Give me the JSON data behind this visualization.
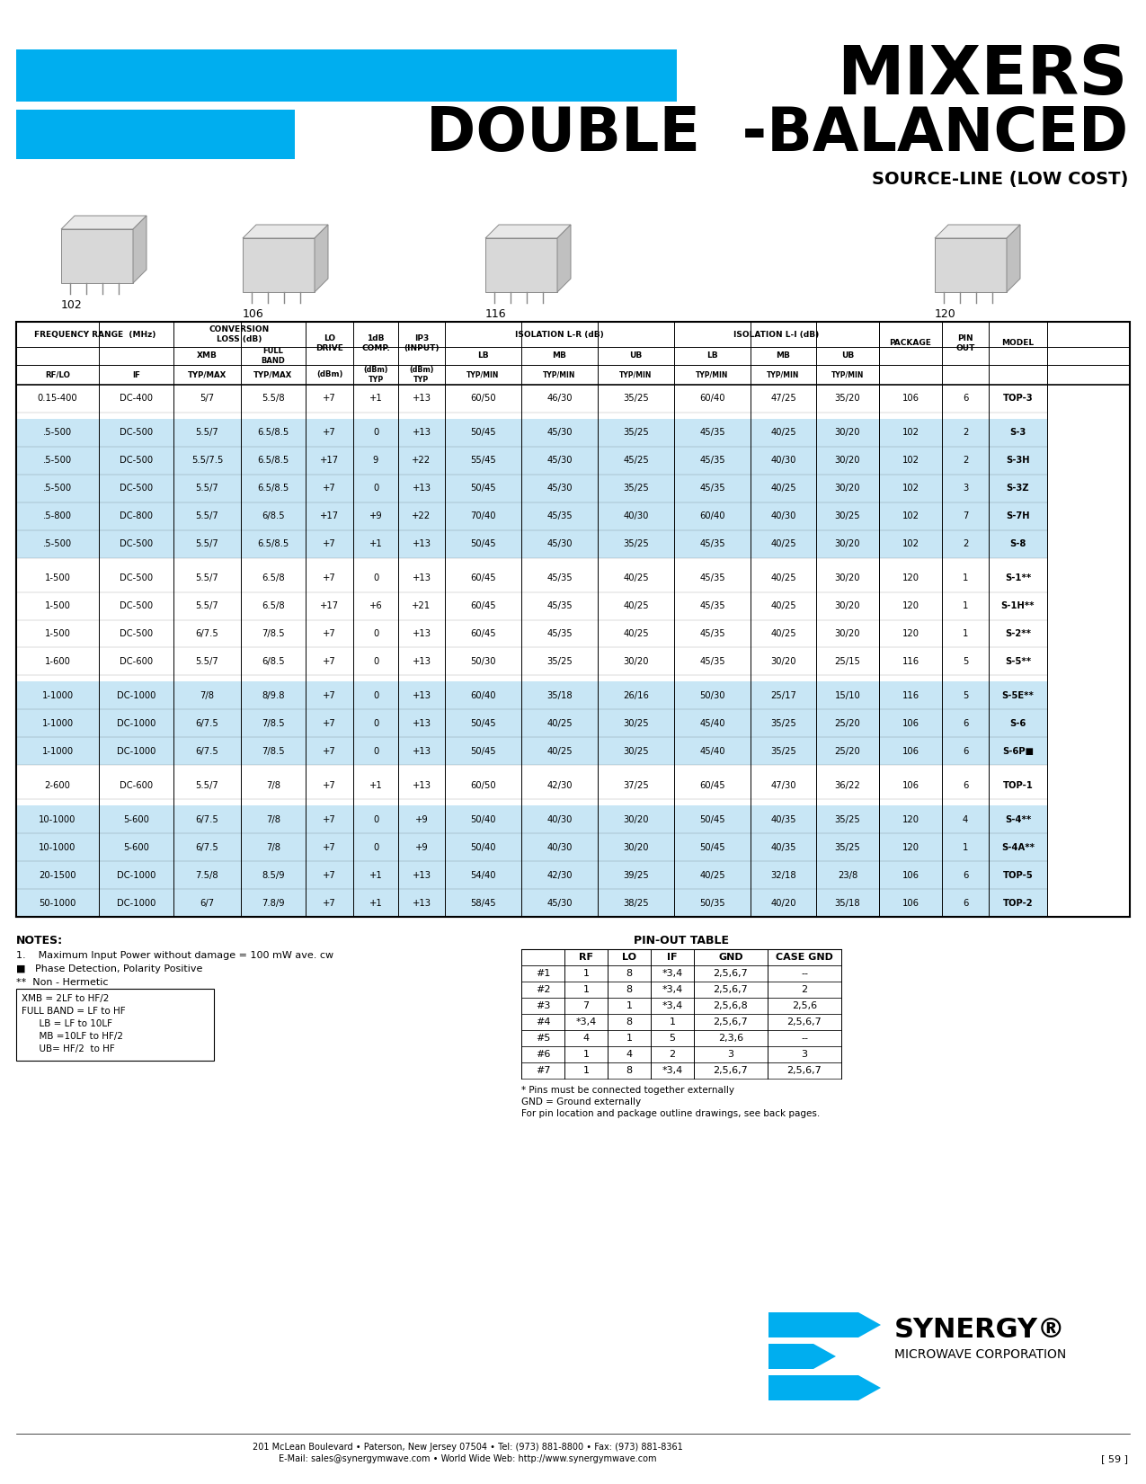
{
  "title1": "MIXERS",
  "title2": "DOUBLE  -BALANCED",
  "subtitle": "SOURCE-LINE (LOW COST)",
  "blue_color": "#00AEEF",
  "light_blue_row": "#C8E6F5",
  "rows": [
    [
      "0.15-400",
      "DC-400",
      "5/7",
      "5.5/8",
      "+7",
      "+1",
      "+13",
      "60/50",
      "46/30",
      "35/25",
      "60/40",
      "47/25",
      "35/20",
      "106",
      "6",
      "TOP-3",
      "white"
    ],
    [
      ".5-500",
      "DC-500",
      "5.5/7",
      "6.5/8.5",
      "+7",
      "0",
      "+13",
      "50/45",
      "45/30",
      "35/25",
      "45/35",
      "40/25",
      "30/20",
      "102",
      "2",
      "S-3",
      "blue"
    ],
    [
      ".5-500",
      "DC-500",
      "5.5/7.5",
      "6.5/8.5",
      "+17",
      "9",
      "+22",
      "55/45",
      "45/30",
      "45/25",
      "45/35",
      "40/30",
      "30/20",
      "102",
      "2",
      "S-3H",
      "blue"
    ],
    [
      ".5-500",
      "DC-500",
      "5.5/7",
      "6.5/8.5",
      "+7",
      "0",
      "+13",
      "50/45",
      "45/30",
      "35/25",
      "45/35",
      "40/25",
      "30/20",
      "102",
      "3",
      "S-3Z",
      "blue"
    ],
    [
      ".5-800",
      "DC-800",
      "5.5/7",
      "6/8.5",
      "+17",
      "+9",
      "+22",
      "70/40",
      "45/35",
      "40/30",
      "60/40",
      "40/30",
      "30/25",
      "102",
      "7",
      "S-7H",
      "blue"
    ],
    [
      ".5-500",
      "DC-500",
      "5.5/7",
      "6.5/8.5",
      "+7",
      "+1",
      "+13",
      "50/45",
      "45/30",
      "35/25",
      "45/35",
      "40/25",
      "30/20",
      "102",
      "2",
      "S-8",
      "blue"
    ],
    [
      "1-500",
      "DC-500",
      "5.5/7",
      "6.5/8",
      "+7",
      "0",
      "+13",
      "60/45",
      "45/35",
      "40/25",
      "45/35",
      "40/25",
      "30/20",
      "120",
      "1",
      "S-1**",
      "white"
    ],
    [
      "1-500",
      "DC-500",
      "5.5/7",
      "6.5/8",
      "+17",
      "+6",
      "+21",
      "60/45",
      "45/35",
      "40/25",
      "45/35",
      "40/25",
      "30/20",
      "120",
      "1",
      "S-1H**",
      "white"
    ],
    [
      "1-500",
      "DC-500",
      "6/7.5",
      "7/8.5",
      "+7",
      "0",
      "+13",
      "60/45",
      "45/35",
      "40/25",
      "45/35",
      "40/25",
      "30/20",
      "120",
      "1",
      "S-2**",
      "white"
    ],
    [
      "1-600",
      "DC-600",
      "5.5/7",
      "6/8.5",
      "+7",
      "0",
      "+13",
      "50/30",
      "35/25",
      "30/20",
      "45/35",
      "30/20",
      "25/15",
      "116",
      "5",
      "S-5**",
      "white"
    ],
    [
      "1-1000",
      "DC-1000",
      "7/8",
      "8/9.8",
      "+7",
      "0",
      "+13",
      "60/40",
      "35/18",
      "26/16",
      "50/30",
      "25/17",
      "15/10",
      "116",
      "5",
      "S-5E**",
      "blue"
    ],
    [
      "1-1000",
      "DC-1000",
      "6/7.5",
      "7/8.5",
      "+7",
      "0",
      "+13",
      "50/45",
      "40/25",
      "30/25",
      "45/40",
      "35/25",
      "25/20",
      "106",
      "6",
      "S-6",
      "blue"
    ],
    [
      "1-1000",
      "DC-1000",
      "6/7.5",
      "7/8.5",
      "+7",
      "0",
      "+13",
      "50/45",
      "40/25",
      "30/25",
      "45/40",
      "35/25",
      "25/20",
      "106",
      "6",
      "S-6P■",
      "blue"
    ],
    [
      "2-600",
      "DC-600",
      "5.5/7",
      "7/8",
      "+7",
      "+1",
      "+13",
      "60/50",
      "42/30",
      "37/25",
      "60/45",
      "47/30",
      "36/22",
      "106",
      "6",
      "TOP-1",
      "white"
    ],
    [
      "10-1000",
      "5-600",
      "6/7.5",
      "7/8",
      "+7",
      "0",
      "+9",
      "50/40",
      "40/30",
      "30/20",
      "50/45",
      "40/35",
      "35/25",
      "120",
      "4",
      "S-4**",
      "blue"
    ],
    [
      "10-1000",
      "5-600",
      "6/7.5",
      "7/8",
      "+7",
      "0",
      "+9",
      "50/40",
      "40/30",
      "30/20",
      "50/45",
      "40/35",
      "35/25",
      "120",
      "1",
      "S-4A**",
      "blue"
    ],
    [
      "20-1500",
      "DC-1000",
      "7.5/8",
      "8.5/9",
      "+7",
      "+1",
      "+13",
      "54/40",
      "42/30",
      "39/25",
      "40/25",
      "32/18",
      "23/8",
      "106",
      "6",
      "TOP-5",
      "blue"
    ],
    [
      "50-1000",
      "DC-1000",
      "6/7",
      "7.8/9",
      "+7",
      "+1",
      "+13",
      "58/45",
      "45/30",
      "38/25",
      "50/35",
      "40/20",
      "35/18",
      "106",
      "6",
      "TOP-2",
      "blue"
    ]
  ],
  "group_bg": [
    "white",
    "blue",
    "white",
    "blue",
    "white",
    "blue"
  ],
  "group_sizes": [
    1,
    5,
    4,
    3,
    1,
    4
  ],
  "notes_line1": "1.    Maximum Input Power without damage = 100 mW ave. cw",
  "notes_line2": "■   Phase Detection, Polarity Positive",
  "notes_line3": "**  Non - Hermetic",
  "legend_lines": [
    "XMB = 2LF to HF/2",
    "FULL BAND = LF to HF",
    "      LB = LF to 10LF",
    "      MB =10LF to HF/2",
    "      UB= HF/2  to HF"
  ],
  "pin_rows": [
    [
      "#1",
      "1",
      "8",
      "*3,4",
      "2,5,6,7",
      "--"
    ],
    [
      "#2",
      "1",
      "8",
      "*3,4",
      "2,5,6,7",
      "2"
    ],
    [
      "#3",
      "7",
      "1",
      "*3,4",
      "2,5,6,8",
      "2,5,6"
    ],
    [
      "#4",
      "*3,4",
      "8",
      "1",
      "2,5,6,7",
      "2,5,6,7"
    ],
    [
      "#5",
      "4",
      "1",
      "5",
      "2,3,6",
      "--"
    ],
    [
      "#6",
      "1",
      "4",
      "2",
      "3",
      "3"
    ],
    [
      "#7",
      "1",
      "8",
      "*3,4",
      "2,5,6,7",
      "2,5,6,7"
    ]
  ],
  "pin_note1": "* Pins must be connected together externally",
  "pin_note2": "GND = Ground externally",
  "pin_note3": "For pin location and package outline drawings, see back pages.",
  "footer1": "201 McLean Boulevard • Paterson, New Jersey 07504 • Tel: (973) 881-8800 • Fax: (973) 881-8361",
  "footer2": "E-Mail: sales@synergymwave.com • World Wide Web: http://www.synergymwave.com",
  "page_num": "[ 59 ]"
}
